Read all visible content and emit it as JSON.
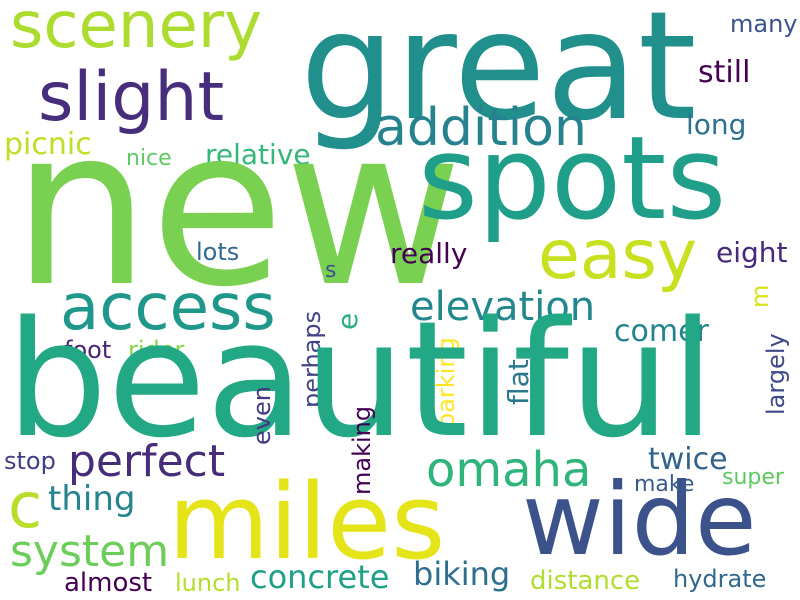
{
  "words": [
    {
      "text": "great",
      "color": "#21908d"
    },
    {
      "text": "scenery",
      "color": "#addc30"
    },
    {
      "text": "slight",
      "color": "#472d7b"
    },
    {
      "text": "addition",
      "color": "#26828e"
    },
    {
      "text": "many",
      "color": "#3b528b"
    },
    {
      "text": "still",
      "color": "#440154"
    },
    {
      "text": "long",
      "color": "#2c728e"
    },
    {
      "text": "picnic",
      "color": "#bddf26"
    },
    {
      "text": "nice",
      "color": "#5ec962"
    },
    {
      "text": "relative",
      "color": "#35b779"
    },
    {
      "text": "new",
      "color": "#7ad151"
    },
    {
      "text": "spots",
      "color": "#1f9e89"
    },
    {
      "text": "easy",
      "color": "#c8e020"
    },
    {
      "text": "lots",
      "color": "#31688e"
    },
    {
      "text": "s",
      "color": "#3b528b"
    },
    {
      "text": "really",
      "color": "#440154"
    },
    {
      "text": "eight",
      "color": "#482878"
    },
    {
      "text": "m",
      "color": "#d8e219"
    },
    {
      "text": "access",
      "color": "#1f988b"
    },
    {
      "text": "e",
      "color": "#2ab07f"
    },
    {
      "text": "elevation",
      "color": "#23888e"
    },
    {
      "text": "comer",
      "color": "#25838e"
    },
    {
      "text": "foot",
      "color": "#482475"
    },
    {
      "text": "rider",
      "color": "#86d549"
    },
    {
      "text": "perhaps",
      "color": "#414487"
    },
    {
      "text": "parking",
      "color": "#fde725"
    },
    {
      "text": "flat",
      "color": "#2a788e"
    },
    {
      "text": "largely",
      "color": "#3e4989"
    },
    {
      "text": "beautiful",
      "color": "#22a884"
    },
    {
      "text": "even",
      "color": "#443983"
    },
    {
      "text": "perfect",
      "color": "#472c7a"
    },
    {
      "text": "omaha",
      "color": "#2fb47c"
    },
    {
      "text": "stop",
      "color": "#433e85"
    },
    {
      "text": "twice",
      "color": "#33638d"
    },
    {
      "text": "making",
      "color": "#440154"
    },
    {
      "text": "c",
      "color": "#b8de29"
    },
    {
      "text": "thing",
      "color": "#25858e"
    },
    {
      "text": "miles",
      "color": "#e5e419"
    },
    {
      "text": "wide",
      "color": "#3b528b"
    },
    {
      "text": "make",
      "color": "#365c8d"
    },
    {
      "text": "super",
      "color": "#5ec962"
    },
    {
      "text": "system",
      "color": "#6ccd5a"
    },
    {
      "text": "almost",
      "color": "#440154"
    },
    {
      "text": "lunch",
      "color": "#b5de2b"
    },
    {
      "text": "concrete",
      "color": "#1fa188"
    },
    {
      "text": "biking",
      "color": "#2e6e8e"
    },
    {
      "text": "distance",
      "color": "#b0dd2f"
    },
    {
      "text": "hydrate",
      "color": "#31688e"
    }
  ]
}
